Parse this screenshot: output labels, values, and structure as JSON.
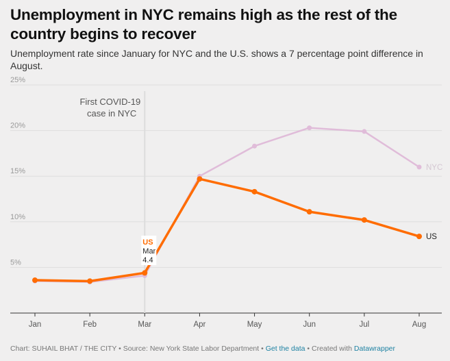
{
  "title": "Unemployment in NYC remains high as the rest of the country begins to recover",
  "subtitle": "Unemployment rate since January for NYC and the U.S. shows a 7 percentage point difference in August.",
  "footer": {
    "credit": "Chart: SUHAIL BHAT / THE CITY",
    "separator1": " • ",
    "source": "Source: New York State Labor Department",
    "separator2": " • ",
    "get_data": "Get the data",
    "separator3": " • ",
    "created_with": "Created with ",
    "datawrapper": "Datawrapper"
  },
  "colors": {
    "us": "#ff6c00",
    "nyc": "#e0bcd9",
    "grid": "#dedede",
    "axis": "#333333"
  },
  "chart_data": {
    "type": "line",
    "categories": [
      "Jan",
      "Feb",
      "Mar",
      "Apr",
      "May",
      "Jun",
      "Jul",
      "Aug"
    ],
    "y_ticks": [
      "5%",
      "10%",
      "15%",
      "20%",
      "25%"
    ],
    "y_tick_values": [
      5,
      10,
      15,
      20,
      25
    ],
    "ylim": [
      0,
      25
    ],
    "grid": true,
    "series": [
      {
        "name": "NYC",
        "values": [
          3.5,
          3.4,
          4.1,
          15.0,
          18.3,
          20.3,
          19.9,
          16.0
        ]
      },
      {
        "name": "US",
        "values": [
          3.6,
          3.5,
          4.4,
          14.7,
          13.3,
          11.1,
          10.2,
          8.4
        ]
      }
    ],
    "annotation": {
      "text_line1": "First COVID-19",
      "text_line2": "case in NYC",
      "category": "Mar"
    },
    "tooltip": {
      "series": "US",
      "category": "Mar",
      "value": "4.4"
    }
  }
}
